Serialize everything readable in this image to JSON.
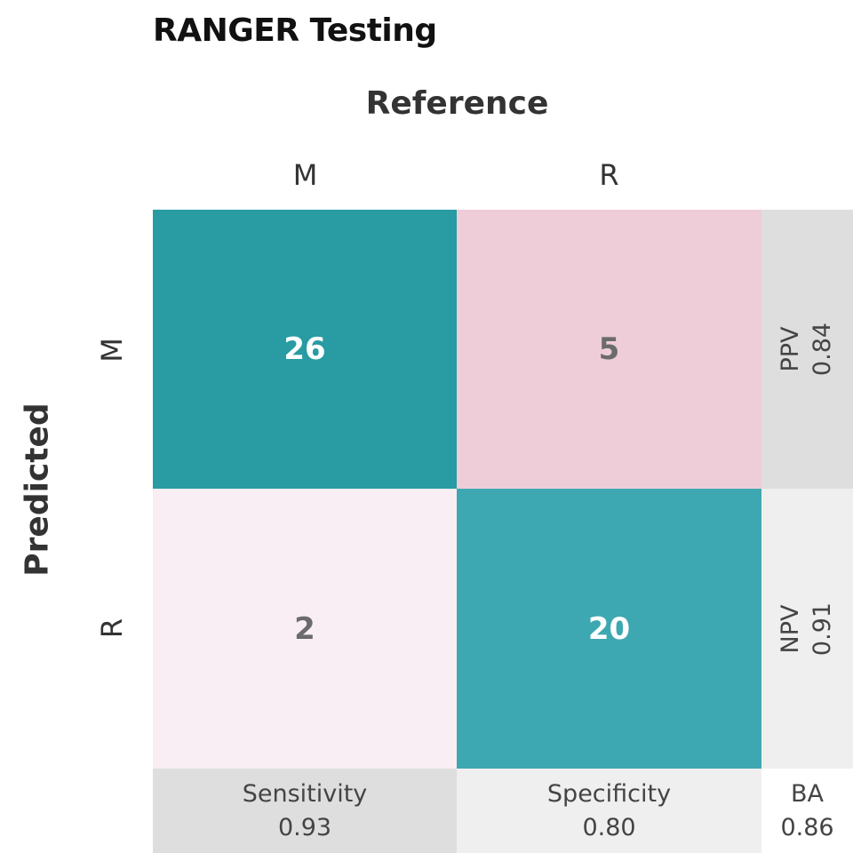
{
  "chart_data": {
    "type": "heatmap",
    "title": "RANGER Testing",
    "xlabel": "Reference",
    "ylabel": "Predicted",
    "x_categories": [
      "M",
      "R"
    ],
    "y_categories": [
      "M",
      "R"
    ],
    "matrix": [
      [
        26,
        5
      ],
      [
        2,
        20
      ]
    ],
    "colors": {
      "true_high": "#289ba3",
      "true_mid": "#3ea8b2",
      "false_high": "#eecdd9",
      "false_low": "#f9eef3",
      "stat_dark": "#dedede",
      "stat_light": "#efefef"
    },
    "row_stats": [
      {
        "label": "PPV",
        "value": "0.84"
      },
      {
        "label": "NPV",
        "value": "0.91"
      }
    ],
    "col_stats": [
      {
        "label": "Sensitivity",
        "value": "0.93"
      },
      {
        "label": "Specificity",
        "value": "0.80"
      }
    ],
    "overall_stat": {
      "label": "BA",
      "value": "0.86"
    }
  }
}
